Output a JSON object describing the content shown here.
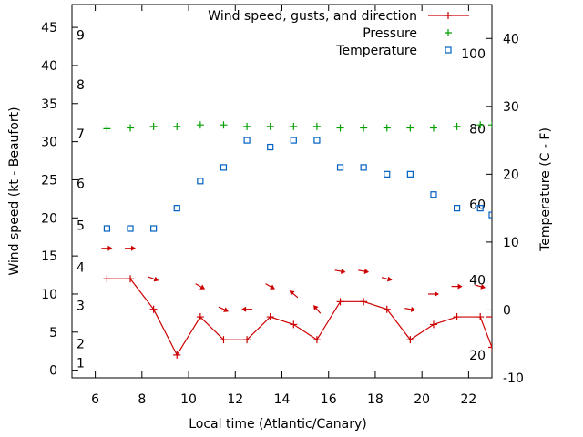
{
  "chart_data": {
    "type": "line",
    "xlabel": "Local time (Atlantic/Canary)",
    "ylabel_left": "Wind speed (kt - Beaufort)",
    "ylabel_right": "Temperature (C - F)",
    "xlim": [
      5,
      23
    ],
    "ylim_left": [
      -1,
      48
    ],
    "ylim_right": [
      -10,
      45
    ],
    "x_ticks": [
      "6",
      "8",
      "10",
      "12",
      "14",
      "16",
      "18",
      "20",
      "22"
    ],
    "y_ticks_left": [
      "0",
      "5",
      "10",
      "15",
      "20",
      "25",
      "30",
      "35",
      "40",
      "45"
    ],
    "y_ticks_right": [
      "-10",
      "0",
      "10",
      "20",
      "30",
      "40"
    ],
    "beaufort_labels": [
      "1",
      "2",
      "3",
      "4",
      "5",
      "6",
      "7",
      "8",
      "9"
    ],
    "fahrenheit_labels": [
      "20",
      "40",
      "60",
      "80",
      "100"
    ],
    "legend_position": "top-right",
    "grid": false,
    "colors": {
      "wind": "#cc0000",
      "pressure": "#00a000",
      "temperature": "#0060c0",
      "axis": "#000000"
    },
    "series": [
      {
        "name": "Wind speed, gusts, and direction",
        "axis": "left",
        "style": "line-with-plus-markers",
        "x": [
          6.5,
          7.5,
          8.5,
          9.5,
          10.5,
          11.5,
          12.5,
          13.5,
          14.5,
          15.5,
          16.5,
          17.5,
          18.5,
          19.5,
          20.5,
          21.5,
          22.5,
          23
        ],
        "values": [
          12,
          12,
          8,
          2,
          7,
          4,
          4,
          7,
          6,
          4,
          9,
          9,
          8,
          4,
          6,
          7,
          7,
          3
        ],
        "direction_arrows": {
          "y": [
            16,
            16,
            12,
            null,
            11,
            8,
            8,
            11,
            10,
            8,
            13,
            13,
            12,
            8,
            10,
            11,
            11,
            7
          ],
          "angles_deg": [
            0,
            0,
            20,
            null,
            30,
            25,
            180,
            30,
            220,
            230,
            10,
            10,
            15,
            10,
            0,
            0,
            15,
            0
          ]
        }
      },
      {
        "name": "Pressure",
        "axis": "left",
        "style": "plus-markers",
        "x": [
          6.5,
          7.5,
          8.5,
          9.5,
          10.5,
          11.5,
          12.5,
          13.5,
          14.5,
          15.5,
          16.5,
          17.5,
          18.5,
          19.5,
          20.5,
          21.5,
          22.5,
          23
        ],
        "values": [
          31.7,
          31.8,
          32.0,
          32.0,
          32.2,
          32.2,
          32.0,
          32.0,
          32.0,
          32.0,
          31.8,
          31.8,
          31.8,
          31.8,
          31.8,
          32.0,
          32.2,
          32.2
        ]
      },
      {
        "name": "Temperature",
        "axis": "right",
        "style": "square-markers",
        "x": [
          6.5,
          7.5,
          8.5,
          9.5,
          10.5,
          11.5,
          12.5,
          13.5,
          14.5,
          15.5,
          16.5,
          17.5,
          18.5,
          19.5,
          20.5,
          21.5,
          22.5,
          23
        ],
        "values": [
          12,
          12,
          12,
          15,
          19,
          21,
          25,
          24,
          25,
          25,
          21,
          21,
          20,
          20,
          17,
          15,
          15,
          14
        ]
      }
    ]
  }
}
